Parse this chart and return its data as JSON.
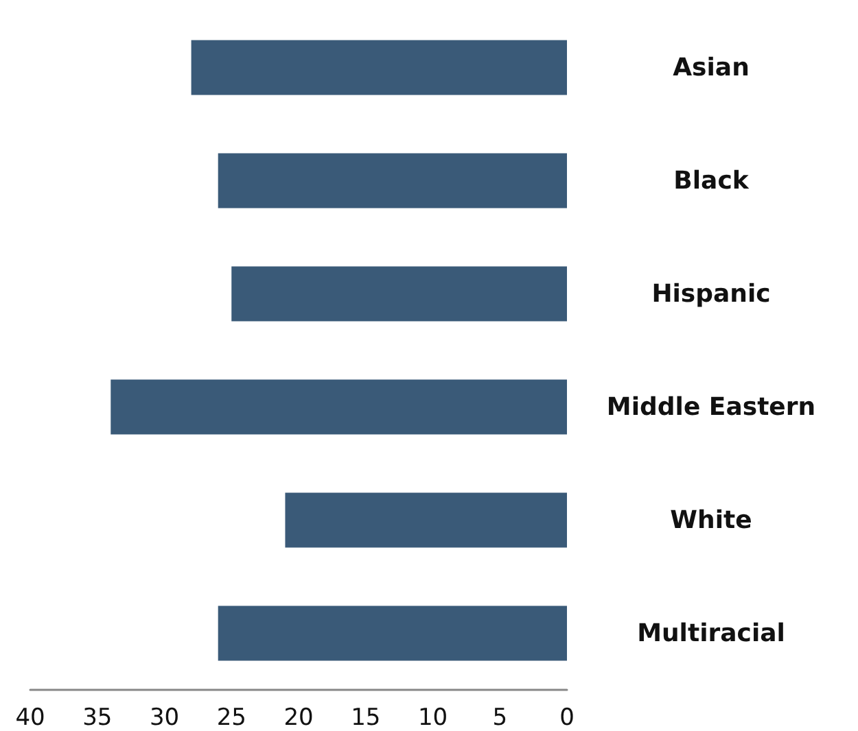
{
  "chart_data": {
    "type": "bar",
    "orientation": "horizontal",
    "categories": [
      "Asian",
      "Black",
      "Hispanic",
      "Middle Eastern",
      "White",
      "Multiracial"
    ],
    "values": [
      28,
      26,
      25,
      34,
      21,
      26
    ],
    "color": "#3a5a78",
    "xlim": [
      40,
      0
    ],
    "xticks": [
      40,
      35,
      30,
      25,
      20,
      15,
      10,
      5,
      0
    ],
    "grid": false
  }
}
